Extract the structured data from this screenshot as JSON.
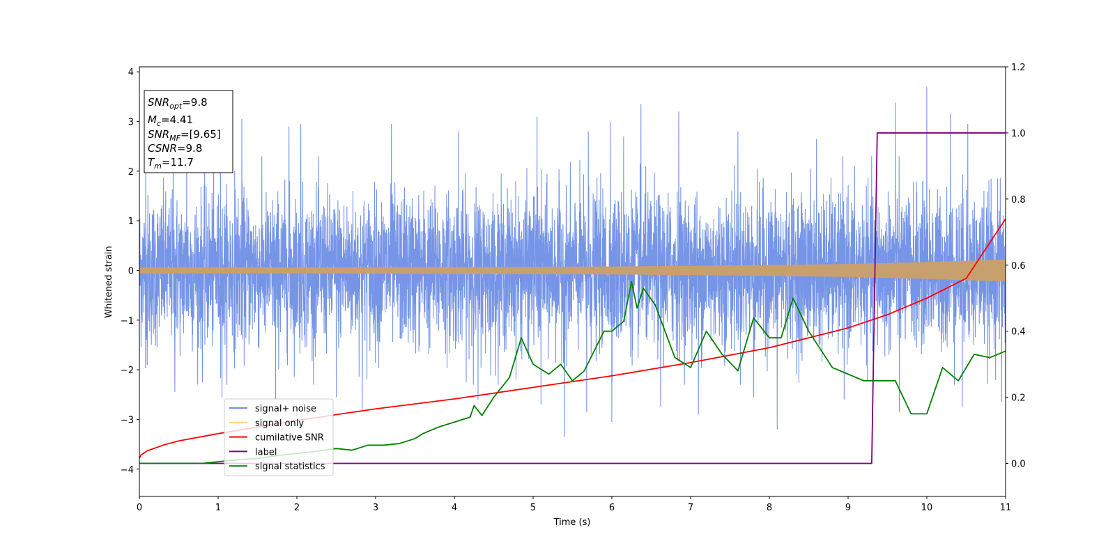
{
  "chart_data": {
    "type": "line",
    "xlabel": "Time (s)",
    "ylabel": "Whitened strain",
    "xlim": [
      0,
      11
    ],
    "ylim": [
      -4.55,
      4.1
    ],
    "y2lim": [
      -0.1,
      1.2
    ],
    "xticks": [
      "0",
      "1",
      "2",
      "3",
      "4",
      "5",
      "6",
      "7",
      "8",
      "9",
      "10",
      "11"
    ],
    "yticks": [
      "4",
      "3",
      "2",
      "1",
      "0",
      "−1",
      "−2",
      "−3",
      "−4"
    ],
    "y2ticks": [
      "1.2",
      "1.0",
      "0.8",
      "0.6",
      "0.4",
      "0.2",
      "0.0"
    ],
    "grid": false,
    "legend": {
      "placement": "lower-left",
      "entries": [
        {
          "label": "signal+ noise",
          "color": "#6f8fe6"
        },
        {
          "label": "signal only",
          "color": "#ffd27f"
        },
        {
          "label": "cumilative SNR",
          "color": "#ff0000"
        },
        {
          "label": "label",
          "color": "#800080"
        },
        {
          "label": "signal statistics",
          "color": "#008000"
        }
      ]
    },
    "info_box": {
      "snr_opt": {
        "base": "SNR",
        "sub": "opt",
        "value": "=9.8"
      },
      "mc": {
        "base": "M",
        "sub": "c",
        "value": "=4.41"
      },
      "snr_mf": {
        "base": "SNR",
        "sub": "MF",
        "value": "=[9.65]"
      },
      "csnr": {
        "base": "CSNR",
        "value": "=9.8"
      },
      "tm": {
        "base": "T",
        "sub": "m",
        "value": "=11.7"
      }
    },
    "series": [
      {
        "name": "signal+ noise",
        "axis": "left",
        "color": "#6f8fe6",
        "noise_sigma": 0.75,
        "extremes": [
          [
            0.08,
            2.05
          ],
          [
            0.43,
            2.4
          ],
          [
            0.6,
            2.55
          ],
          [
            1.03,
            2.5
          ],
          [
            1.05,
            1.55
          ],
          [
            1.21,
            2.0
          ],
          [
            1.3,
            3.05
          ],
          [
            1.9,
            2.9
          ],
          [
            2.05,
            2.95
          ],
          [
            3.2,
            2.95
          ],
          [
            4.05,
            2.8
          ],
          [
            5.05,
            3.1
          ],
          [
            5.7,
            2.8
          ],
          [
            5.98,
            3.0
          ],
          [
            6.15,
            2.7
          ],
          [
            6.37,
            3.35
          ],
          [
            6.85,
            3.2
          ],
          [
            7.6,
            2.8
          ],
          [
            8.6,
            2.65
          ],
          [
            9.6,
            3.38
          ],
          [
            10.0,
            3.7
          ],
          [
            10.3,
            3.15
          ],
          [
            10.52,
            2.95
          ],
          [
            0.1,
            -1.9
          ],
          [
            0.45,
            -2.45
          ],
          [
            0.8,
            -2.25
          ],
          [
            1.05,
            -2.55
          ],
          [
            1.73,
            -2.6
          ],
          [
            2.5,
            -2.55
          ],
          [
            2.83,
            -2.8
          ],
          [
            4.3,
            -2.6
          ],
          [
            5.1,
            -2.7
          ],
          [
            5.4,
            -3.35
          ],
          [
            5.68,
            -2.85
          ],
          [
            6.0,
            -3.05
          ],
          [
            6.62,
            -2.75
          ],
          [
            7.1,
            -2.9
          ],
          [
            7.8,
            -2.55
          ],
          [
            8.1,
            -3.2
          ],
          [
            8.95,
            -2.6
          ],
          [
            9.65,
            -2.85
          ],
          [
            10.45,
            -2.75
          ],
          [
            10.95,
            -2.65
          ]
        ]
      },
      {
        "name": "signal only",
        "axis": "left",
        "color": "#c8a06e",
        "envelope": [
          [
            0,
            0.06
          ],
          [
            2,
            0.06
          ],
          [
            4,
            0.07
          ],
          [
            6,
            0.08
          ],
          [
            8,
            0.11
          ],
          [
            9,
            0.13
          ],
          [
            10,
            0.17
          ],
          [
            11,
            0.22
          ]
        ]
      },
      {
        "name": "cumilative SNR",
        "axis": "right",
        "color": "#ff0000",
        "x": [
          0,
          0.02,
          0.1,
          0.3,
          0.5,
          1,
          2,
          3,
          4,
          5,
          6,
          7,
          8,
          9,
          9.5,
          10,
          10.5,
          11
        ],
        "y": [
          0.015,
          0.025,
          0.038,
          0.055,
          0.068,
          0.09,
          0.13,
          0.165,
          0.195,
          0.23,
          0.265,
          0.305,
          0.35,
          0.41,
          0.45,
          0.5,
          0.56,
          0.74
        ]
      },
      {
        "name": "label",
        "axis": "right",
        "color": "#800080",
        "x": [
          0,
          9.3,
          9.37,
          11
        ],
        "y": [
          0,
          0,
          1,
          1
        ]
      },
      {
        "name": "signal statistics",
        "axis": "right",
        "color": "#008000",
        "x": [
          0,
          0.8,
          1.0,
          1.2,
          1.5,
          1.8,
          2.0,
          2.2,
          2.5,
          2.7,
          2.9,
          3.1,
          3.3,
          3.5,
          3.6,
          3.8,
          4.0,
          4.2,
          4.25,
          4.35,
          4.5,
          4.7,
          4.85,
          5.0,
          5.2,
          5.35,
          5.5,
          5.65,
          5.9,
          6.0,
          6.15,
          6.25,
          6.32,
          6.4,
          6.55,
          6.8,
          7.0,
          7.2,
          7.4,
          7.6,
          7.8,
          8.0,
          8.15,
          8.3,
          8.5,
          8.8,
          9.0,
          9.2,
          9.4,
          9.6,
          9.8,
          10.0,
          10.2,
          10.4,
          10.6,
          10.8,
          11.0
        ],
        "y": [
          0.0,
          0.0,
          0.005,
          0.01,
          0.015,
          0.025,
          0.03,
          0.035,
          0.045,
          0.04,
          0.055,
          0.055,
          0.06,
          0.075,
          0.09,
          0.11,
          0.125,
          0.14,
          0.175,
          0.145,
          0.2,
          0.26,
          0.38,
          0.3,
          0.27,
          0.3,
          0.25,
          0.28,
          0.4,
          0.4,
          0.43,
          0.55,
          0.47,
          0.53,
          0.48,
          0.32,
          0.29,
          0.4,
          0.33,
          0.28,
          0.44,
          0.38,
          0.38,
          0.5,
          0.4,
          0.29,
          0.27,
          0.25,
          0.25,
          0.25,
          0.15,
          0.15,
          0.29,
          0.25,
          0.33,
          0.32,
          0.34
        ]
      }
    ]
  }
}
